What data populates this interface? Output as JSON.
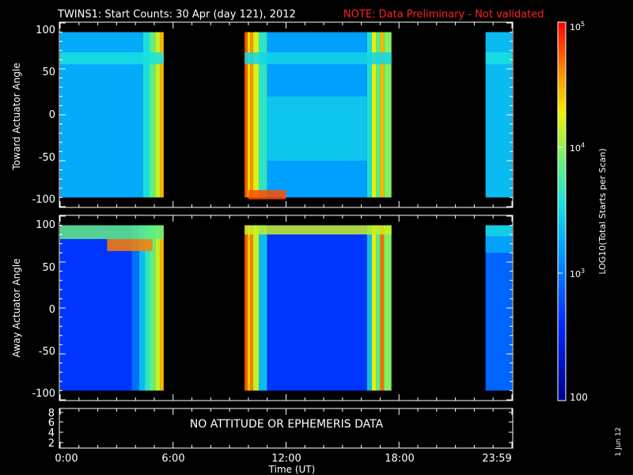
{
  "title": {
    "main": "TWINS1: Start Counts: 30 Apr (day 121), 2012",
    "note": "NOTE: Data Preliminary - Not validated",
    "note_color": "#ff2020"
  },
  "panels": [
    {
      "ylabel": "Toward Actuator Angle",
      "yticks": [
        "100",
        "50",
        "0",
        "-50",
        "-100"
      ]
    },
    {
      "ylabel": "Away Actuator Angle",
      "yticks": [
        "100",
        "50",
        "0",
        "-50",
        "-100"
      ]
    }
  ],
  "bottom_panel": {
    "message": "NO ATTITUDE OR EPHEMERIS DATA",
    "yticks": [
      "8",
      "6",
      "4",
      "2"
    ]
  },
  "xaxis": {
    "label": "Time (UT)",
    "ticks": [
      "0:00",
      "6:00",
      "12:00",
      "18:00",
      "23:59"
    ]
  },
  "colorbar": {
    "label": "LOG10(Total Starts per Scan)",
    "ticks": [
      "10^5",
      "10^4",
      "10^3",
      "100"
    ],
    "tick_display": [
      {
        "base": "10",
        "exp": "5"
      },
      {
        "base": "10",
        "exp": "4"
      },
      {
        "base": "10",
        "exp": "3"
      },
      {
        "base": "100",
        "exp": ""
      }
    ]
  },
  "date_stamp": "1 Jun 12",
  "chart_data": {
    "type": "heatmap",
    "x_unit": "hours UT",
    "x_range": [
      0,
      24
    ],
    "y_range": [
      -100,
      100
    ],
    "data_y_extent": [
      -90,
      90
    ],
    "color_scale": "log",
    "color_range": [
      100,
      100000
    ],
    "data_intervals_hours": [
      [
        0,
        5.5
      ],
      [
        9.8,
        17.6
      ],
      [
        22.6,
        24
      ]
    ],
    "panels": [
      {
        "name": "Toward Actuator Angle",
        "blocks": [
          {
            "x": [
              0,
              4.4
            ],
            "level": 0.42
          },
          {
            "x": [
              4.4,
              4.75
            ],
            "level": 0.52
          },
          {
            "x": [
              4.75,
              5.05
            ],
            "level": 0.62
          },
          {
            "x": [
              5.05,
              5.3
            ],
            "level": 0.72
          },
          {
            "x": [
              5.3,
              5.5
            ],
            "level": 0.82
          },
          {
            "x": [
              9.8,
              9.95
            ],
            "level": 0.92
          },
          {
            "x": [
              9.95,
              10.1
            ],
            "level": 0.78
          },
          {
            "x": [
              10.1,
              10.25
            ],
            "level": 0.86
          },
          {
            "x": [
              10.25,
              10.55
            ],
            "level": 0.74
          },
          {
            "x": [
              10.55,
              11
            ],
            "level": 0.55
          },
          {
            "x": [
              11,
              16.3
            ],
            "level": 0.4
          },
          {
            "x": [
              16.3,
              16.55
            ],
            "level": 0.52
          },
          {
            "x": [
              16.55,
              16.8
            ],
            "level": 0.75
          },
          {
            "x": [
              16.8,
              17
            ],
            "level": 0.6
          },
          {
            "x": [
              17,
              17.2
            ],
            "level": 0.82
          },
          {
            "x": [
              17.2,
              17.6
            ],
            "level": 0.66
          },
          {
            "x": [
              22.6,
              24
            ],
            "level": 0.45
          }
        ],
        "bands": [
          {
            "x": [
              0,
              5.5
            ],
            "y": [
              55,
              68
            ],
            "level": 0.52
          },
          {
            "x": [
              9.8,
              17.6
            ],
            "y": [
              55,
              68
            ],
            "level": 0.5
          },
          {
            "x": [
              22.6,
              24
            ],
            "y": [
              55,
              68
            ],
            "level": 0.52
          },
          {
            "x": [
              11,
              16.3
            ],
            "y": [
              -50,
              20
            ],
            "level": 0.48
          },
          {
            "x": [
              10,
              12
            ],
            "y": [
              -92,
              -82
            ],
            "level": 0.93
          }
        ]
      },
      {
        "name": "Away Actuator Angle",
        "blocks": [
          {
            "x": [
              0,
              3.8
            ],
            "level": 0.22
          },
          {
            "x": [
              3.8,
              4.2
            ],
            "level": 0.32
          },
          {
            "x": [
              4.2,
              4.5
            ],
            "level": 0.45
          },
          {
            "x": [
              4.5,
              4.75
            ],
            "level": 0.55
          },
          {
            "x": [
              4.75,
              5.05
            ],
            "level": 0.62
          },
          {
            "x": [
              5.05,
              5.3
            ],
            "level": 0.72
          },
          {
            "x": [
              5.3,
              5.5
            ],
            "level": 0.82
          },
          {
            "x": [
              9.8,
              9.95
            ],
            "level": 0.92
          },
          {
            "x": [
              9.95,
              10.1
            ],
            "level": 0.8
          },
          {
            "x": [
              10.1,
              10.25
            ],
            "level": 0.88
          },
          {
            "x": [
              10.25,
              10.55
            ],
            "level": 0.72
          },
          {
            "x": [
              10.55,
              11
            ],
            "level": 0.45
          },
          {
            "x": [
              11,
              16.3
            ],
            "level": 0.22
          },
          {
            "x": [
              16.3,
              16.55
            ],
            "level": 0.45
          },
          {
            "x": [
              16.55,
              16.8
            ],
            "level": 0.75
          },
          {
            "x": [
              16.8,
              17
            ],
            "level": 0.6
          },
          {
            "x": [
              17,
              17.2
            ],
            "level": 0.9
          },
          {
            "x": [
              17.2,
              17.6
            ],
            "level": 0.66
          },
          {
            "x": [
              22.6,
              24
            ],
            "level": 0.3
          }
        ],
        "bands": [
          {
            "x": [
              0,
              5.5
            ],
            "y": [
              75,
              90
            ],
            "level": 0.62
          },
          {
            "x": [
              2.5,
              4.9
            ],
            "y": [
              62,
              75
            ],
            "level": 0.88
          },
          {
            "x": [
              9.8,
              17.6
            ],
            "y": [
              80,
              90
            ],
            "level": 0.72
          },
          {
            "x": [
              22.6,
              24
            ],
            "y": [
              78,
              90
            ],
            "level": 0.52
          },
          {
            "x": [
              22.6,
              24
            ],
            "y": [
              60,
              78
            ],
            "level": 0.42
          }
        ]
      }
    ]
  }
}
